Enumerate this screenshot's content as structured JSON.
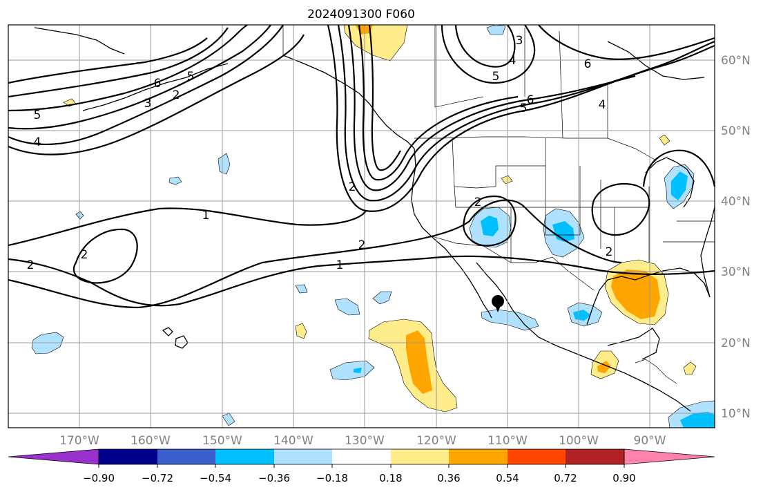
{
  "title": "2024091300 F060",
  "map": {
    "lon_ticks": [
      "170°W",
      "160°W",
      "150°W",
      "140°W",
      "130°W",
      "120°W",
      "110°W",
      "100°W",
      "90°W"
    ],
    "lat_ticks": [
      "60°N",
      "50°N",
      "40°N",
      "30°N",
      "20°N",
      "10°N"
    ],
    "lon_range": [
      -180,
      -81
    ],
    "lat_range": [
      8,
      65
    ],
    "marker": {
      "name": "storm-center",
      "lon": -110.5,
      "lat": 26
    }
  },
  "contour_labels": [
    "5",
    "4",
    "3",
    "2",
    "6",
    "5",
    "6",
    "5",
    "4",
    "3",
    "5",
    "6",
    "4",
    "1",
    "2",
    "1",
    "2",
    "2",
    "2",
    "2",
    "2"
  ],
  "colorbar": {
    "colors": [
      "#9932cc",
      "#00008b",
      "#3a5fcd",
      "#00bfff",
      "#b0e2ff",
      "#ffffff",
      "#ffec8b",
      "#ffa500",
      "#ff4500",
      "#b22222",
      "#ff82ab"
    ],
    "tick_labels": [
      "−0.90",
      "−0.72",
      "−0.54",
      "−0.36",
      "−0.18",
      "0.18",
      "0.36",
      "0.54",
      "0.72",
      "0.90"
    ]
  }
}
